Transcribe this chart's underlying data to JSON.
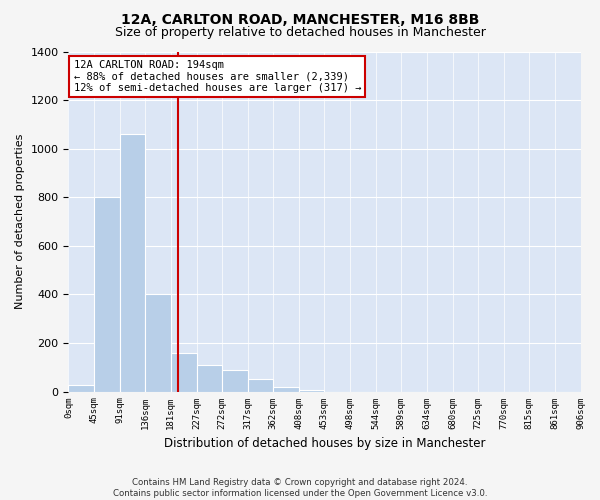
{
  "title": "12A, CARLTON ROAD, MANCHESTER, M16 8BB",
  "subtitle": "Size of property relative to detached houses in Manchester",
  "xlabel": "Distribution of detached houses by size in Manchester",
  "ylabel": "Number of detached properties",
  "footnote": "Contains HM Land Registry data © Crown copyright and database right 2024.\nContains public sector information licensed under the Open Government Licence v3.0.",
  "bin_labels": [
    "0sqm",
    "45sqm",
    "91sqm",
    "136sqm",
    "181sqm",
    "227sqm",
    "272sqm",
    "317sqm",
    "362sqm",
    "408sqm",
    "453sqm",
    "498sqm",
    "544sqm",
    "589sqm",
    "634sqm",
    "680sqm",
    "725sqm",
    "770sqm",
    "815sqm",
    "861sqm",
    "906sqm"
  ],
  "bar_values": [
    25,
    800,
    1060,
    400,
    160,
    110,
    90,
    50,
    20,
    8,
    0,
    0,
    0,
    0,
    0,
    0,
    0,
    0,
    0,
    0
  ],
  "bar_color": "#b8cfe8",
  "property_line_x": 194,
  "property_line_color": "#cc0000",
  "ylim": [
    0,
    1400
  ],
  "yticks": [
    0,
    200,
    400,
    600,
    800,
    1000,
    1200,
    1400
  ],
  "bin_edges": [
    0,
    45,
    91,
    136,
    181,
    227,
    272,
    317,
    362,
    408,
    453,
    498,
    544,
    589,
    634,
    680,
    725,
    770,
    815,
    861,
    906
  ],
  "annotation_title": "12A CARLTON ROAD: 194sqm",
  "annotation_line1": "← 88% of detached houses are smaller (2,339)",
  "annotation_line2": "12% of semi-detached houses are larger (317) →",
  "background_color": "#dce6f5",
  "grid_color": "#ffffff",
  "fig_bg_color": "#f5f5f5",
  "title_fontsize": 10,
  "subtitle_fontsize": 9,
  "annotation_fontsize": 7.5
}
